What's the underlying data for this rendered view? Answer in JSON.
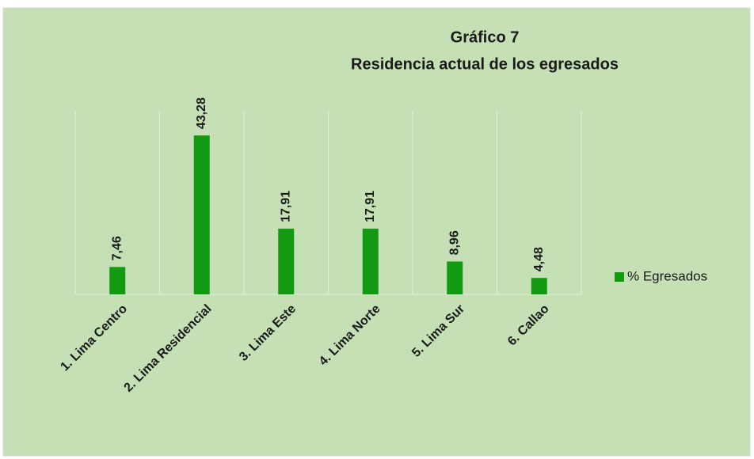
{
  "chart_data": {
    "type": "bar",
    "title": "Gráfico 7",
    "subtitle": "Residencia actual de los egresados",
    "categories": [
      "1. Lima Centro",
      "2. Lima Residencial",
      "3. Lima Este",
      "4. Lima Norte",
      "5. Lima Sur",
      "6. Callao"
    ],
    "series": [
      {
        "name": "% Egresados",
        "color": "#129a12",
        "values": [
          7.46,
          43.28,
          17.91,
          17.91,
          8.96,
          4.48
        ],
        "value_labels": [
          "7,46",
          "43,28",
          "17,91",
          "17,91",
          "8,96",
          "4,48"
        ]
      }
    ],
    "ylim": [
      0,
      50
    ],
    "grid": true,
    "legend": "right"
  }
}
